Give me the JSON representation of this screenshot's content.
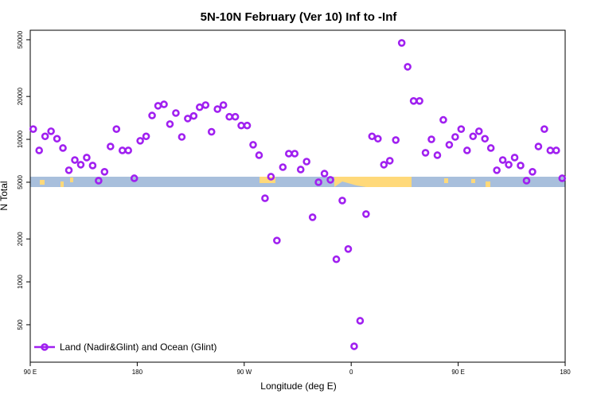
{
  "chart_data": {
    "type": "scatter",
    "title": "5N-10N February (Ver 10)   Inf to -Inf",
    "x_label": "Longitude (deg E)",
    "y_label": "N Total",
    "log_y": true,
    "xlim": [
      90,
      540
    ],
    "ylim": [
      273,
      58300
    ],
    "xticks": [
      {
        "value": 90,
        "label": "90 E"
      },
      180,
      {
        "value": 270,
        "label": "90 W"
      },
      {
        "value": 360,
        "label": "0"
      },
      {
        "value": 450,
        "label": "90 E"
      },
      {
        "value": 540,
        "label": "180"
      }
    ],
    "yticks": [
      500,
      1000,
      2000,
      5000,
      10000,
      20000,
      50000
    ],
    "legend_position": "bottom-left",
    "x": [
      92.5,
      97.5,
      102.5,
      107.5,
      112.5,
      117.5,
      122.5,
      127.5,
      132.5,
      137.5,
      142.5,
      147.5,
      152.5,
      157.5,
      162.5,
      167.5,
      172.5,
      177.5,
      182.5,
      187.5,
      192.5,
      197.5,
      202.5,
      207.5,
      212.5,
      217.5,
      222.5,
      227.5,
      232.5,
      237.5,
      242.5,
      247.5,
      252.5,
      257.5,
      262.5,
      267.5,
      272.5,
      277.5,
      282.5,
      287.5,
      292.5,
      297.5,
      302.5,
      307.5,
      312.5,
      317.5,
      322.5,
      327.5,
      332.5,
      337.5,
      342.5,
      347.5,
      352.5,
      357.5,
      362.5,
      367.5,
      372.5,
      377.5,
      382.5,
      387.5,
      392.5,
      397.5,
      402.5,
      407.5,
      412.5,
      417.5,
      422.5,
      427.5,
      432.5,
      437.5,
      442.5,
      447.5,
      452.5,
      457.5,
      462.5,
      467.5,
      472.5,
      477.5,
      482.5,
      487.5,
      492.5,
      497.5,
      502.5,
      507.5,
      512.5,
      517.5,
      522.5,
      527.5,
      532.5,
      537.5
    ],
    "series": [
      {
        "name": "Land (Nadir&Glint) and Ocean (Glint)",
        "color": "#a020f0",
        "values": [
          11800,
          8360,
          10500,
          11400,
          10100,
          8690,
          6070,
          7160,
          6640,
          7450,
          6550,
          5130,
          5920,
          8910,
          11800,
          8360,
          8360,
          5330,
          9770,
          10500,
          14700,
          17200,
          17600,
          12800,
          15300,
          10400,
          14000,
          14600,
          16800,
          17400,
          11300,
          16300,
          17400,
          14400,
          14400,
          12500,
          12500,
          9160,
          7740,
          3860,
          5470,
          1950,
          6380,
          7940,
          7940,
          6140,
          6980,
          2840,
          5000,
          5750,
          5200,
          1440,
          3720,
          1700,
          353,
          533,
          2990,
          10500,
          10100,
          6640,
          7080,
          9890,
          47500,
          32300,
          18600,
          18600,
          8050,
          10000,
          7740,
          13700,
          9160,
          10400,
          11800,
          8360,
          10500,
          11400,
          10100,
          8690,
          6070,
          7160,
          6640,
          7450,
          6550,
          5130,
          5920,
          8910,
          11800,
          8360,
          8360,
          5330
        ]
      }
    ]
  }
}
